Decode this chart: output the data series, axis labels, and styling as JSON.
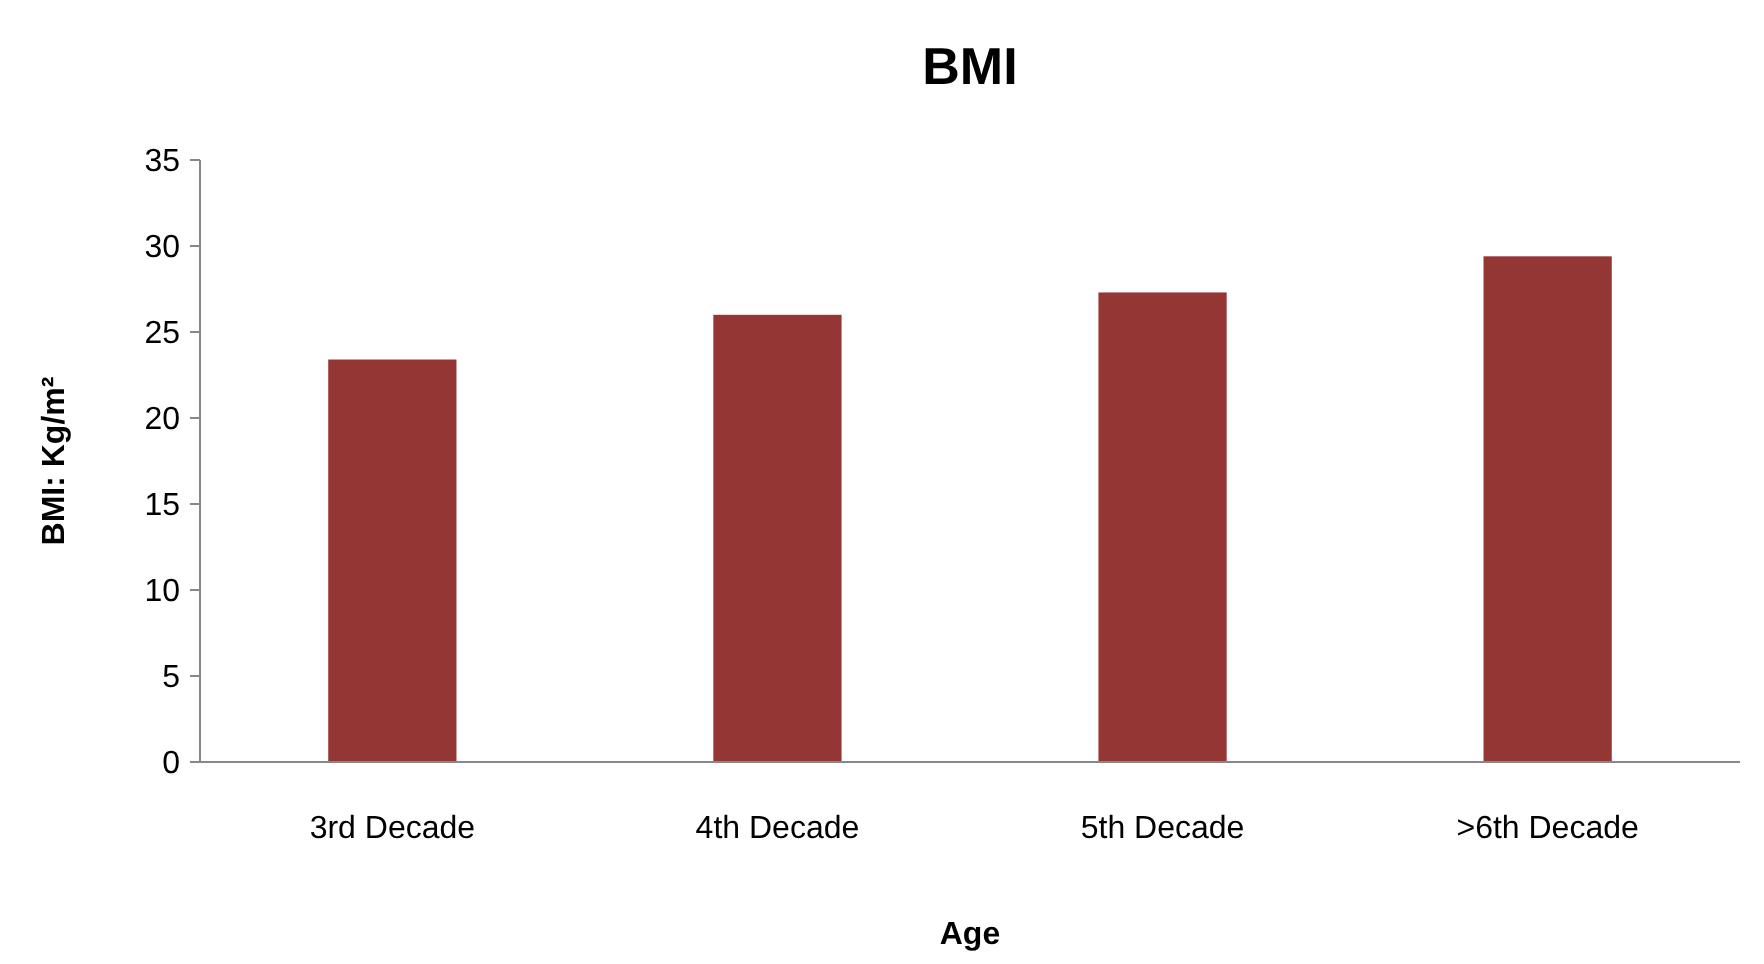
{
  "chart_data": {
    "type": "bar",
    "title": "BMI",
    "xlabel": "Age",
    "ylabel": "BMI: Kg/m²",
    "categories": [
      "3rd Decade",
      "4th Decade",
      "5th Decade",
      ">6th Decade"
    ],
    "values": [
      23.4,
      26.0,
      27.3,
      29.4
    ],
    "color": "#943634",
    "ylim": [
      0,
      35
    ],
    "yticks": [
      0,
      5,
      10,
      15,
      20,
      25,
      30,
      35
    ],
    "grid": false
  }
}
